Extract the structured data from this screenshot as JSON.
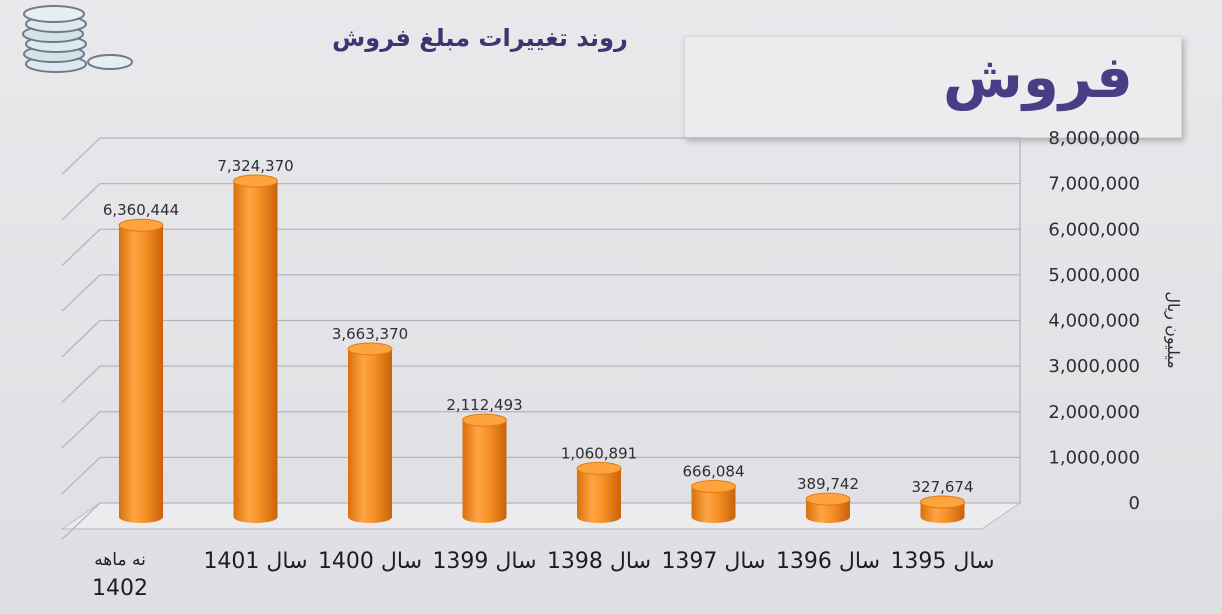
{
  "header": {
    "main_title": "فروش",
    "subtitle": "روند تغییرات مبلغ فروش"
  },
  "icons": {
    "coins": "coins-stack-icon"
  },
  "colors": {
    "bar": "#f08a1e",
    "bar_dark": "#d96f0c",
    "bar_light": "#ffb05a",
    "title": "#4a3d86"
  },
  "chart_data": {
    "type": "bar",
    "title": "روند تغییرات مبلغ فروش",
    "ylabel": "میلیون ریال",
    "ylim": [
      0,
      8000000
    ],
    "yticks": [
      "8,000,000",
      "7,000,000",
      "6,000,000",
      "5,000,000",
      "4,000,000",
      "3,000,000",
      "2,000,000",
      "1,000,000",
      "0"
    ],
    "categories": [
      [
        "نه ماهه",
        "1402"
      ],
      [
        "سال 1401"
      ],
      [
        "سال 1400"
      ],
      [
        "سال 1399"
      ],
      [
        "سال 1398"
      ],
      [
        "سال 1397"
      ],
      [
        "سال 1396"
      ],
      [
        "سال 1395"
      ]
    ],
    "values": [
      6360444,
      7324370,
      3663370,
      2112493,
      1060891,
      666084,
      389742,
      327674
    ],
    "value_labels": [
      "6,360,444",
      "7,324,370",
      "3,663,370",
      "2,112,493",
      "1,060,891",
      "666,084",
      "389,742",
      "327,674"
    ],
    "grid": true,
    "axis_position": "right"
  }
}
